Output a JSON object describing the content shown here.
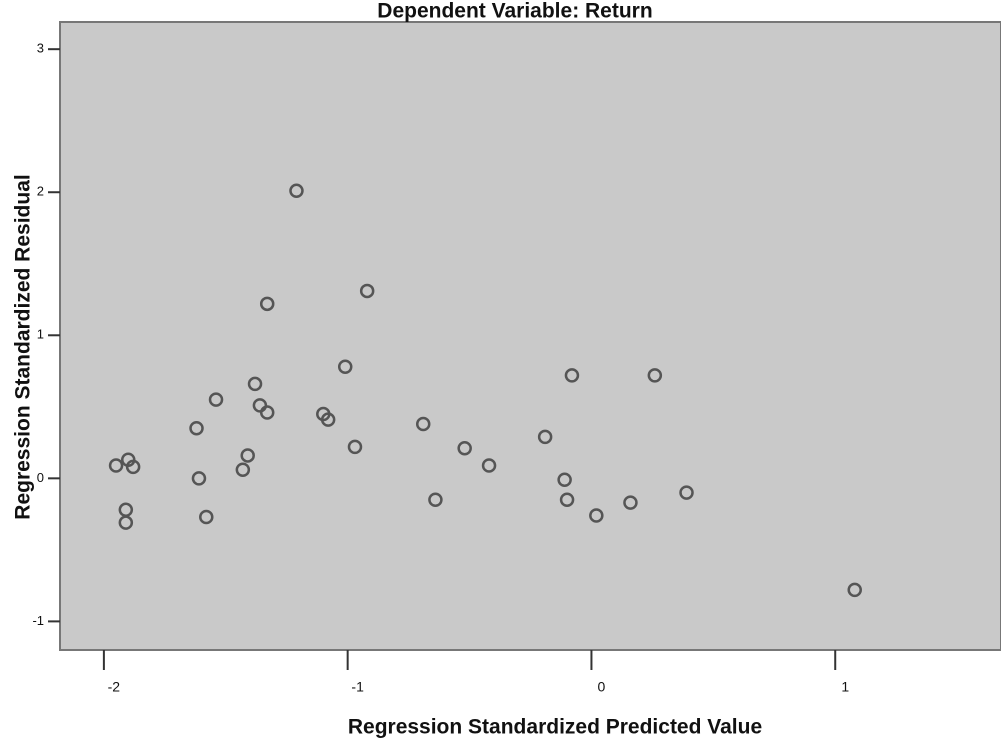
{
  "chart_data": {
    "type": "scatter",
    "title": "Dependent Variable: Return",
    "x_label": "Regression Standardized Predicted Value",
    "y_label": "Regression Standardized Residual",
    "color": "#555555",
    "x": [
      -1.95,
      -1.9,
      -1.88,
      -1.91,
      -1.91,
      -1.62,
      -1.54,
      -1.61,
      -1.58,
      -1.38,
      -1.36,
      -1.33,
      -1.41,
      -1.43,
      -1.33,
      -1.21,
      -1.01,
      -0.92,
      -1.1,
      -1.08,
      -0.97,
      -0.69,
      -0.52,
      -0.42,
      -0.19,
      -0.08,
      0.26,
      -0.11,
      -0.1,
      0.16,
      0.39,
      1.08,
      0.02,
      -0.64
    ],
    "values": [
      0.09,
      0.13,
      0.08,
      -0.22,
      -0.31,
      0.35,
      0.55,
      0.0,
      -0.27,
      0.66,
      0.51,
      0.46,
      0.16,
      0.06,
      1.22,
      2.01,
      0.78,
      1.31,
      0.45,
      0.41,
      0.22,
      0.38,
      0.21,
      0.09,
      0.29,
      0.72,
      0.72,
      -0.01,
      -0.15,
      -0.17,
      -0.1,
      -0.78,
      -0.26,
      -0.15
    ],
    "xlim": [
      -2.18,
      1.68
    ],
    "xticks": [
      -2,
      -1,
      0,
      1
    ],
    "ylim": [
      -1.2,
      3.19
    ],
    "yticks": [
      -1,
      0,
      1,
      2,
      3
    ]
  }
}
